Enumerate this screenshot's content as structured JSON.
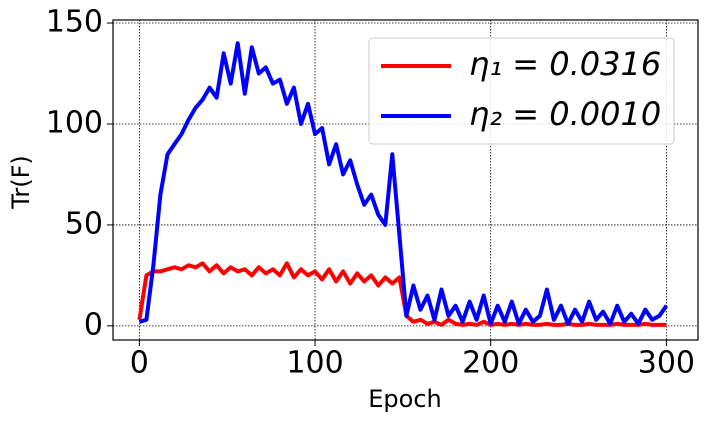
{
  "chart_data": {
    "type": "line",
    "x_label": "Epoch",
    "y_label": "Tr(F)",
    "x": [
      0,
      4,
      8,
      12,
      16,
      20,
      24,
      28,
      32,
      36,
      40,
      44,
      48,
      52,
      56,
      60,
      64,
      68,
      72,
      76,
      80,
      84,
      88,
      92,
      96,
      100,
      104,
      108,
      112,
      116,
      120,
      124,
      128,
      132,
      136,
      140,
      144,
      148,
      152,
      156,
      160,
      164,
      168,
      172,
      176,
      180,
      184,
      188,
      192,
      196,
      200,
      204,
      208,
      212,
      216,
      220,
      224,
      228,
      232,
      236,
      240,
      244,
      248,
      252,
      256,
      260,
      264,
      268,
      272,
      276,
      280,
      284,
      288,
      292,
      296,
      300
    ],
    "series": [
      {
        "name": "η₁ = 0.0316",
        "color": "#ff0000",
        "values": [
          3,
          25,
          27,
          27,
          28,
          29,
          28,
          30,
          29,
          31,
          27,
          30,
          26,
          29,
          27,
          28,
          25,
          29,
          26,
          28,
          25,
          31,
          24,
          28,
          25,
          27,
          23,
          28,
          22,
          27,
          21,
          26,
          22,
          25,
          20,
          24,
          21,
          24,
          5,
          2,
          3,
          1,
          2,
          0.5,
          3,
          1,
          0.5,
          1,
          0.5,
          2,
          0.5,
          1,
          0.5,
          1,
          0.5,
          1,
          0.5,
          0.5,
          1,
          0.5,
          0.5,
          1,
          0.5,
          0.5,
          1,
          0.5,
          0.5,
          0.5,
          1,
          0.5,
          0.5,
          0.5,
          1,
          0.5,
          0.5,
          0.5
        ]
      },
      {
        "name": "η₂ = 0.0010",
        "color": "#0000ff",
        "values": [
          2,
          3,
          30,
          65,
          85,
          90,
          95,
          102,
          108,
          112,
          118,
          113,
          135,
          120,
          140,
          115,
          138,
          125,
          128,
          120,
          122,
          110,
          118,
          100,
          110,
          95,
          98,
          80,
          90,
          75,
          82,
          70,
          60,
          65,
          55,
          50,
          85,
          45,
          5,
          20,
          8,
          15,
          3,
          18,
          5,
          10,
          2,
          12,
          3,
          15,
          1,
          10,
          2,
          12,
          1,
          8,
          2,
          5,
          18,
          3,
          10,
          1,
          8,
          2,
          12,
          3,
          7,
          1,
          10,
          2,
          6,
          1,
          8,
          3,
          5,
          10
        ]
      }
    ],
    "xlim": [
      -15,
      318
    ],
    "ylim": [
      -7,
      151.5
    ],
    "xticks": [
      0,
      100,
      200,
      300
    ],
    "yticks": [
      0,
      50,
      100,
      150
    ],
    "grid": true,
    "legend_loc": "upper right"
  }
}
